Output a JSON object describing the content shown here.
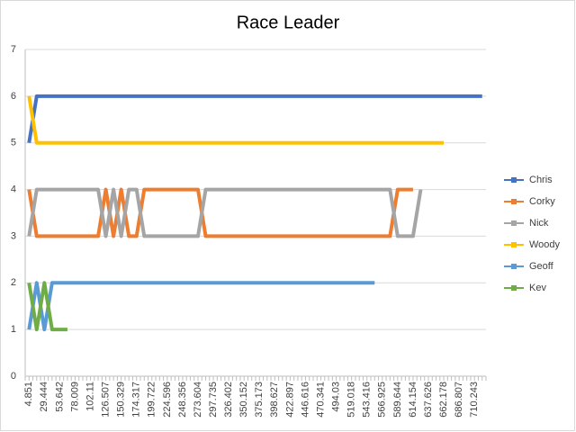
{
  "chart_data": {
    "type": "line",
    "title": "Race Leader",
    "categories": [
      "4.851",
      null,
      "29.444",
      null,
      "53.642",
      null,
      "78.009",
      null,
      "102.11",
      null,
      "126.507",
      null,
      "150.329",
      null,
      "174.317",
      null,
      "199.722",
      null,
      "224.596",
      null,
      "248.356",
      null,
      "273.604",
      null,
      "297.735",
      null,
      "326.402",
      null,
      "350.152",
      null,
      "375.173",
      null,
      "398.627",
      null,
      "422.897",
      null,
      "446.616",
      null,
      "470.341",
      null,
      "494.03",
      null,
      "519.018",
      null,
      "543.416",
      null,
      "566.925",
      null,
      "589.644",
      null,
      "614.154",
      null,
      "637.626",
      null,
      "662.178",
      null,
      "686.807",
      null,
      "710.243",
      null
    ],
    "series": [
      {
        "name": "Chris",
        "color": "#4472c4",
        "values": [
          5,
          6,
          6,
          6,
          6,
          6,
          6,
          6,
          6,
          6,
          6,
          6,
          6,
          6,
          6,
          6,
          6,
          6,
          6,
          6,
          6,
          6,
          6,
          6,
          6,
          6,
          6,
          6,
          6,
          6,
          6,
          6,
          6,
          6,
          6,
          6,
          6,
          6,
          6,
          6,
          6,
          6,
          6,
          6,
          6,
          6,
          6,
          6,
          6,
          6,
          6,
          6,
          6,
          6,
          6,
          6,
          6,
          6,
          6,
          6
        ]
      },
      {
        "name": "Corky",
        "color": "#ed7d31",
        "values": [
          4,
          3,
          3,
          3,
          3,
          3,
          3,
          3,
          3,
          3,
          4,
          3,
          4,
          3,
          3,
          4,
          4,
          4,
          4,
          4,
          4,
          4,
          4,
          3,
          3,
          3,
          3,
          3,
          3,
          3,
          3,
          3,
          3,
          3,
          3,
          3,
          3,
          3,
          3,
          3,
          3,
          3,
          3,
          3,
          3,
          3,
          3,
          3,
          4,
          4,
          4,
          null,
          null,
          null,
          null,
          null,
          null,
          null,
          null,
          null
        ]
      },
      {
        "name": "Nick",
        "color": "#a5a5a5",
        "values": [
          3,
          4,
          4,
          4,
          4,
          4,
          4,
          4,
          4,
          4,
          3,
          4,
          3,
          4,
          4,
          3,
          3,
          3,
          3,
          3,
          3,
          3,
          3,
          4,
          4,
          4,
          4,
          4,
          4,
          4,
          4,
          4,
          4,
          4,
          4,
          4,
          4,
          4,
          4,
          4,
          4,
          4,
          4,
          4,
          4,
          4,
          4,
          4,
          3,
          3,
          3,
          4,
          null,
          null,
          null,
          null,
          null,
          null,
          null,
          null
        ]
      },
      {
        "name": "Woody",
        "color": "#ffc000",
        "values": [
          6,
          5,
          5,
          5,
          5,
          5,
          5,
          5,
          5,
          5,
          5,
          5,
          5,
          5,
          5,
          5,
          5,
          5,
          5,
          5,
          5,
          5,
          5,
          5,
          5,
          5,
          5,
          5,
          5,
          5,
          5,
          5,
          5,
          5,
          5,
          5,
          5,
          5,
          5,
          5,
          5,
          5,
          5,
          5,
          5,
          5,
          5,
          5,
          5,
          5,
          5,
          5,
          5,
          5,
          5,
          null,
          null,
          null,
          null,
          null
        ]
      },
      {
        "name": "Geoff",
        "color": "#5b9bd5",
        "values": [
          1,
          2,
          1,
          2,
          2,
          2,
          2,
          2,
          2,
          2,
          2,
          2,
          2,
          2,
          2,
          2,
          2,
          2,
          2,
          2,
          2,
          2,
          2,
          2,
          2,
          2,
          2,
          2,
          2,
          2,
          2,
          2,
          2,
          2,
          2,
          2,
          2,
          2,
          2,
          2,
          2,
          2,
          2,
          2,
          2,
          2,
          null,
          null,
          null,
          null,
          null,
          null,
          null,
          null,
          null,
          null,
          null,
          null,
          null,
          null
        ]
      },
      {
        "name": "Kev",
        "color": "#70ad47",
        "values": [
          2,
          1,
          2,
          1,
          1,
          1,
          null,
          null,
          null,
          null,
          null,
          null,
          null,
          null,
          null,
          null,
          null,
          null,
          null,
          null,
          null,
          null,
          null,
          null,
          null,
          null,
          null,
          null,
          null,
          null,
          null,
          null,
          null,
          null,
          null,
          null,
          null,
          null,
          null,
          null,
          null,
          null,
          null,
          null,
          null,
          null,
          null,
          null,
          null,
          null,
          null,
          null,
          null,
          null,
          null,
          null,
          null,
          null,
          null,
          null
        ]
      }
    ],
    "ylim": [
      0,
      7
    ],
    "yticks": [
      0,
      1,
      2,
      3,
      4,
      5,
      6,
      7
    ],
    "grid": true,
    "legend": "right"
  }
}
